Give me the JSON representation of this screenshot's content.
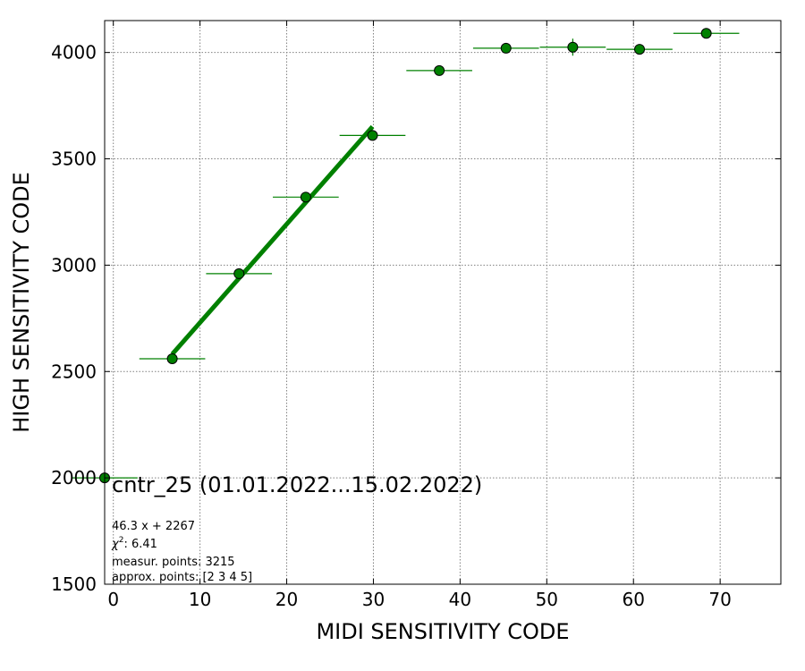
{
  "chart_data": {
    "type": "scatter",
    "title": "cntr_25 (01.01.2022...15.02.2022)",
    "xlabel": "MIDI SENSITIVITY CODE",
    "ylabel": "HIGH SENSITIVITY CODE",
    "xlim": [
      -1,
      77
    ],
    "ylim": [
      1500,
      4150
    ],
    "xticks": [
      0,
      10,
      20,
      30,
      40,
      50,
      60,
      70
    ],
    "yticks": [
      1500,
      2000,
      2500,
      3000,
      3500,
      4000
    ],
    "grid": true,
    "points": [
      {
        "x": -1,
        "y": 2000,
        "xerr": 3.8,
        "yerr": 0
      },
      {
        "x": 6.8,
        "y": 2560,
        "xerr": 3.8,
        "yerr": 0
      },
      {
        "x": 14.5,
        "y": 2960,
        "xerr": 3.8,
        "yerr": 0
      },
      {
        "x": 22.2,
        "y": 3320,
        "xerr": 3.8,
        "yerr": 0
      },
      {
        "x": 29.9,
        "y": 3610,
        "xerr": 3.8,
        "yerr": 0
      },
      {
        "x": 37.6,
        "y": 3915,
        "xerr": 3.8,
        "yerr": 0
      },
      {
        "x": 45.3,
        "y": 4020,
        "xerr": 3.8,
        "yerr": 0
      },
      {
        "x": 53.0,
        "y": 4025,
        "xerr": 3.8,
        "yerr": 40
      },
      {
        "x": 60.7,
        "y": 4015,
        "xerr": 3.8,
        "yerr": 0
      },
      {
        "x": 68.4,
        "y": 4090,
        "xerr": 3.8,
        "yerr": 0
      }
    ],
    "fit": {
      "x_start": 6.8,
      "x_end": 29.9,
      "slope": 46.3,
      "intercept": 2267
    },
    "colors": {
      "marker": "#008000",
      "marker_edge": "#000000",
      "errorbar": "#008000",
      "fit": "#008000",
      "grid": "#808080"
    },
    "info_lines": {
      "equation": "46.3 x + 2267",
      "chi_symbol": "χ",
      "chi_exp": "2",
      "chi_value": ": 6.41",
      "measure": "measur. points: 3215",
      "approx": "approx. points: [2 3 4 5]"
    }
  }
}
